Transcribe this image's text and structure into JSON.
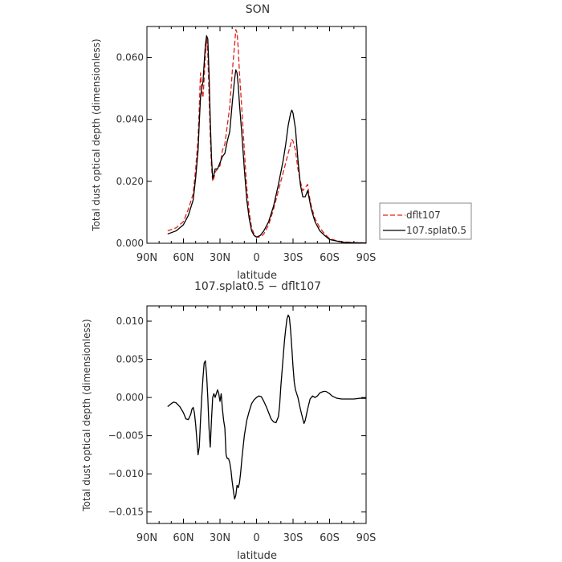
{
  "chart_data": [
    {
      "type": "line",
      "title": "SON",
      "xlabel": "latitude",
      "ylabel": "Total dust optical depth (dimensionless)",
      "xlim": [
        90,
        -90
      ],
      "ylim": [
        0,
        0.07
      ],
      "x_ticks": [
        90,
        60,
        30,
        0,
        -30,
        -60,
        -90
      ],
      "x_tick_labels": [
        "90N",
        "60N",
        "30N",
        "0",
        "30S",
        "60S",
        "90S"
      ],
      "y_ticks": [
        0,
        0.02,
        0.04,
        0.06
      ],
      "y_tick_labels": [
        "0.000",
        "0.020",
        "0.040",
        "0.060"
      ],
      "legend_position": "outside-right",
      "series": [
        {
          "name": "dflt107",
          "color": "#e0201a",
          "dash": "dashed",
          "points": [
            [
              73,
              0.004
            ],
            [
              66,
              0.005
            ],
            [
              60,
              0.007
            ],
            [
              56,
              0.011
            ],
            [
              52,
              0.016
            ],
            [
              50,
              0.024
            ],
            [
              48,
              0.034
            ],
            [
              47,
              0.044
            ],
            [
              46,
              0.055
            ],
            [
              45,
              0.05
            ],
            [
              44,
              0.047
            ],
            [
              43,
              0.053
            ],
            [
              42,
              0.061
            ],
            [
              41,
              0.066
            ],
            [
              40,
              0.061
            ],
            [
              39,
              0.048
            ],
            [
              38,
              0.035
            ],
            [
              37,
              0.025
            ],
            [
              36,
              0.02
            ],
            [
              35,
              0.021
            ],
            [
              34,
              0.023
            ],
            [
              32,
              0.024
            ],
            [
              30,
              0.025
            ],
            [
              28,
              0.03
            ],
            [
              26,
              0.032
            ],
            [
              24,
              0.038
            ],
            [
              22,
              0.044
            ],
            [
              20,
              0.055
            ],
            [
              18,
              0.064
            ],
            [
              17,
              0.069
            ],
            [
              16,
              0.068
            ],
            [
              15,
              0.063
            ],
            [
              14,
              0.055
            ],
            [
              12,
              0.043
            ],
            [
              10,
              0.03
            ],
            [
              8,
              0.018
            ],
            [
              6,
              0.01
            ],
            [
              4,
              0.005
            ],
            [
              2,
              0.003
            ],
            [
              0,
              0.002
            ],
            [
              -3,
              0.002
            ],
            [
              -6,
              0.003
            ],
            [
              -10,
              0.006
            ],
            [
              -14,
              0.011
            ],
            [
              -18,
              0.017
            ],
            [
              -22,
              0.023
            ],
            [
              -24,
              0.026
            ],
            [
              -26,
              0.029
            ],
            [
              -28,
              0.032
            ],
            [
              -29,
              0.0335
            ],
            [
              -30,
              0.033
            ],
            [
              -32,
              0.03
            ],
            [
              -34,
              0.024
            ],
            [
              -36,
              0.02
            ],
            [
              -38,
              0.017
            ],
            [
              -40,
              0.018
            ],
            [
              -42,
              0.019
            ],
            [
              -43,
              0.016
            ],
            [
              -45,
              0.012
            ],
            [
              -48,
              0.008
            ],
            [
              -52,
              0.005
            ],
            [
              -56,
              0.003
            ],
            [
              -60,
              0.0015
            ],
            [
              -66,
              0.0008
            ],
            [
              -72,
              0.0004
            ],
            [
              -80,
              0.0002
            ],
            [
              -90,
              0.0001
            ]
          ]
        },
        {
          "name": "107.splat0.5",
          "color": "#000000",
          "dash": "solid",
          "points": [
            [
              73,
              0.003
            ],
            [
              66,
              0.004
            ],
            [
              60,
              0.006
            ],
            [
              56,
              0.009
            ],
            [
              52,
              0.014
            ],
            [
              50,
              0.021
            ],
            [
              48,
              0.03
            ],
            [
              47,
              0.039
            ],
            [
              46,
              0.047
            ],
            [
              45,
              0.05
            ],
            [
              44,
              0.052
            ],
            [
              43,
              0.058
            ],
            [
              42,
              0.064
            ],
            [
              41,
              0.067
            ],
            [
              40,
              0.066
            ],
            [
              39,
              0.055
            ],
            [
              38,
              0.04
            ],
            [
              37,
              0.028
            ],
            [
              36,
              0.021
            ],
            [
              35,
              0.022
            ],
            [
              34,
              0.024
            ],
            [
              32,
              0.024
            ],
            [
              30,
              0.026
            ],
            [
              28,
              0.028
            ],
            [
              26,
              0.029
            ],
            [
              24,
              0.033
            ],
            [
              22,
              0.036
            ],
            [
              20,
              0.045
            ],
            [
              18,
              0.053
            ],
            [
              17,
              0.056
            ],
            [
              16,
              0.055
            ],
            [
              15,
              0.051
            ],
            [
              14,
              0.045
            ],
            [
              12,
              0.035
            ],
            [
              10,
              0.024
            ],
            [
              8,
              0.014
            ],
            [
              6,
              0.008
            ],
            [
              4,
              0.004
            ],
            [
              2,
              0.0025
            ],
            [
              0,
              0.002
            ],
            [
              -3,
              0.0025
            ],
            [
              -6,
              0.004
            ],
            [
              -10,
              0.007
            ],
            [
              -14,
              0.012
            ],
            [
              -18,
              0.019
            ],
            [
              -22,
              0.027
            ],
            [
              -24,
              0.032
            ],
            [
              -26,
              0.038
            ],
            [
              -28,
              0.042
            ],
            [
              -29,
              0.043
            ],
            [
              -30,
              0.042
            ],
            [
              -32,
              0.037
            ],
            [
              -34,
              0.027
            ],
            [
              -36,
              0.019
            ],
            [
              -38,
              0.015
            ],
            [
              -40,
              0.015
            ],
            [
              -42,
              0.017
            ],
            [
              -43,
              0.015
            ],
            [
              -45,
              0.011
            ],
            [
              -48,
              0.007
            ],
            [
              -52,
              0.004
            ],
            [
              -56,
              0.0025
            ],
            [
              -60,
              0.0012
            ],
            [
              -66,
              0.0007
            ],
            [
              -72,
              0.0003
            ],
            [
              -80,
              0.0002
            ],
            [
              -90,
              0.0001
            ]
          ]
        }
      ]
    },
    {
      "type": "line",
      "title": "107.splat0.5 − dflt107",
      "xlabel": "latitude",
      "ylabel": "Total dust optical depth (dimensionless)",
      "xlim": [
        90,
        -90
      ],
      "ylim": [
        -0.0165,
        0.012
      ],
      "x_ticks": [
        90,
        60,
        30,
        0,
        -30,
        -60,
        -90
      ],
      "x_tick_labels": [
        "90N",
        "60N",
        "30N",
        "0",
        "30S",
        "60S",
        "90S"
      ],
      "y_ticks": [
        -0.015,
        -0.01,
        -0.005,
        0,
        0.005,
        0.01
      ],
      "y_tick_labels": [
        "−0.015",
        "−0.010",
        "−0.005",
        "0.000",
        "0.005",
        "0.010"
      ],
      "series": [
        {
          "color": "#000000",
          "dash": "solid",
          "points": [
            [
              73,
              -0.0012
            ],
            [
              70,
              -0.0008
            ],
            [
              68,
              -0.0006
            ],
            [
              66,
              -0.0007
            ],
            [
              63,
              -0.0012
            ],
            [
              60,
              -0.002
            ],
            [
              58,
              -0.0028
            ],
            [
              56,
              -0.0029
            ],
            [
              54,
              -0.0022
            ],
            [
              53,
              -0.0015
            ],
            [
              52,
              -0.0013
            ],
            [
              51,
              -0.002
            ],
            [
              50,
              -0.0035
            ],
            [
              49,
              -0.0055
            ],
            [
              48,
              -0.0075
            ],
            [
              47,
              -0.0065
            ],
            [
              46,
              -0.003
            ],
            [
              45,
              0.0
            ],
            [
              44,
              0.0025
            ],
            [
              43,
              0.0045
            ],
            [
              42,
              0.0048
            ],
            [
              41,
              0.003
            ],
            [
              40,
              0.0
            ],
            [
              39,
              -0.004
            ],
            [
              38,
              -0.0065
            ],
            [
              37,
              -0.003
            ],
            [
              36,
              0.0
            ],
            [
              35,
              0.0005
            ],
            [
              34,
              0.0
            ],
            [
              33,
              0.0005
            ],
            [
              32,
              0.001
            ],
            [
              31,
              0.0005
            ],
            [
              30,
              -0.0005
            ],
            [
              29,
              0.0005
            ],
            [
              28,
              -0.0015
            ],
            [
              27,
              -0.003
            ],
            [
              26,
              -0.004
            ],
            [
              25,
              -0.0075
            ],
            [
              24,
              -0.008
            ],
            [
              23,
              -0.008
            ],
            [
              22,
              -0.0085
            ],
            [
              21,
              -0.0095
            ],
            [
              20,
              -0.011
            ],
            [
              19,
              -0.0122
            ],
            [
              18,
              -0.0133
            ],
            [
              17,
              -0.0128
            ],
            [
              16,
              -0.0115
            ],
            [
              15,
              -0.0118
            ],
            [
              14,
              -0.0112
            ],
            [
              13,
              -0.0098
            ],
            [
              12,
              -0.008
            ],
            [
              11,
              -0.0065
            ],
            [
              10,
              -0.005
            ],
            [
              8,
              -0.003
            ],
            [
              6,
              -0.0018
            ],
            [
              4,
              -0.0008
            ],
            [
              2,
              -0.0003
            ],
            [
              0,
              0.0
            ],
            [
              -2,
              0.0002
            ],
            [
              -4,
              0.0001
            ],
            [
              -6,
              -0.0005
            ],
            [
              -8,
              -0.0012
            ],
            [
              -10,
              -0.002
            ],
            [
              -12,
              -0.0028
            ],
            [
              -14,
              -0.0032
            ],
            [
              -16,
              -0.0033
            ],
            [
              -18,
              -0.0025
            ],
            [
              -19,
              -0.001
            ],
            [
              -20,
              0.0015
            ],
            [
              -21,
              0.0035
            ],
            [
              -22,
              0.0055
            ],
            [
              -23,
              0.0075
            ],
            [
              -24,
              0.009
            ],
            [
              -25,
              0.0103
            ],
            [
              -26,
              0.0108
            ],
            [
              -27,
              0.0105
            ],
            [
              -28,
              0.0088
            ],
            [
              -29,
              0.0065
            ],
            [
              -30,
              0.004
            ],
            [
              -31,
              0.002
            ],
            [
              -32,
              0.001
            ],
            [
              -34,
              0.0
            ],
            [
              -36,
              -0.0015
            ],
            [
              -38,
              -0.0028
            ],
            [
              -39,
              -0.0034
            ],
            [
              -40,
              -0.003
            ],
            [
              -42,
              -0.0015
            ],
            [
              -44,
              -0.0002
            ],
            [
              -46,
              0.0002
            ],
            [
              -48,
              0.0
            ],
            [
              -50,
              0.0002
            ],
            [
              -52,
              0.0006
            ],
            [
              -55,
              0.0008
            ],
            [
              -57,
              0.0008
            ],
            [
              -60,
              0.0005
            ],
            [
              -62,
              0.0002
            ],
            [
              -66,
              -0.0001
            ],
            [
              -70,
              -0.0002
            ],
            [
              -75,
              -0.0002
            ],
            [
              -80,
              -0.0002
            ],
            [
              -85,
              -0.0001
            ],
            [
              -90,
              -0.0001
            ]
          ]
        }
      ]
    }
  ]
}
